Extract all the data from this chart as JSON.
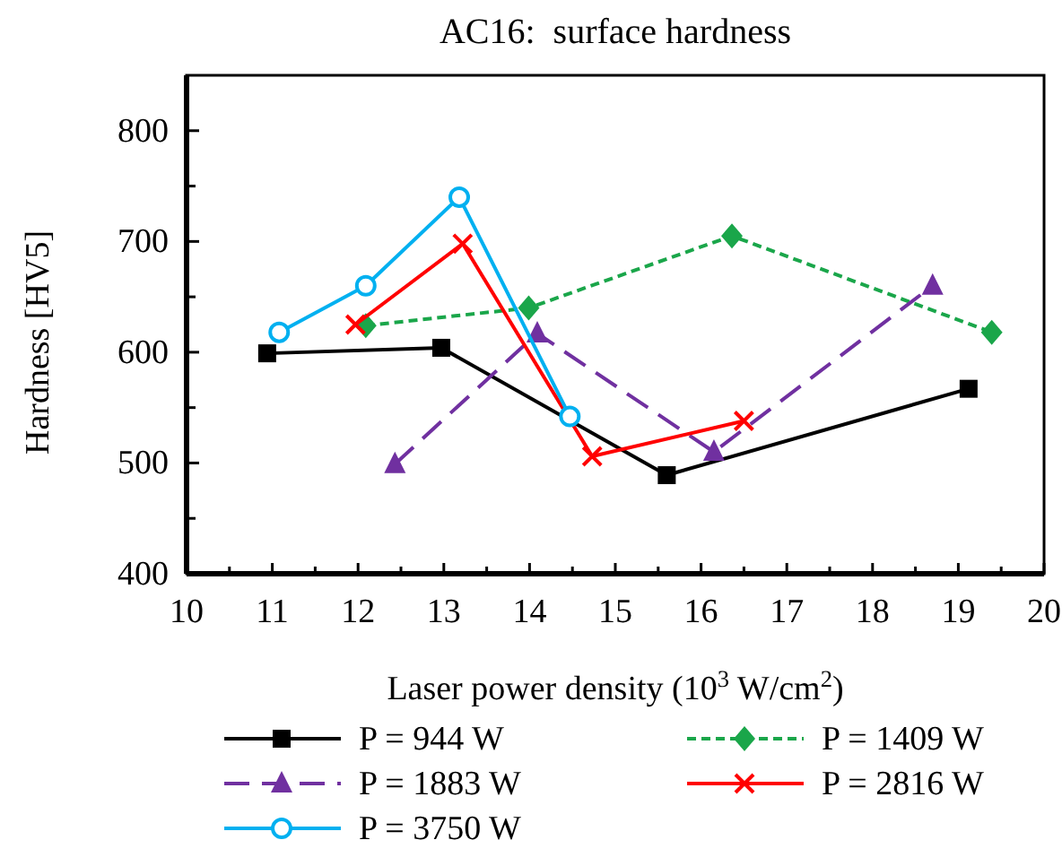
{
  "chart_data": {
    "type": "line",
    "title": "AC16:  surface hardness",
    "xlabel": "Laser power density (10$^{3}$ W/cm$^{2}$)",
    "ylabel": "Hardness [HV5]",
    "xlim": [
      10,
      20
    ],
    "xticks": [
      10,
      11,
      12,
      13,
      14,
      15,
      16,
      17,
      18,
      19,
      20
    ],
    "ylim": [
      400,
      850
    ],
    "yticks": [
      400,
      {
        "value": 450,
        "label": null
      },
      500,
      {
        "value": 550,
        "label": null
      },
      600,
      {
        "value": 650,
        "label": null
      },
      700,
      {
        "value": 750,
        "label": null
      },
      800
    ],
    "grid": false,
    "legend": "bottom",
    "series": [
      {
        "name": "P = 944 W",
        "color": "#000000",
        "marker": "square",
        "line_style": "solid",
        "x": [
          10.94,
          12.97,
          15.6,
          19.12
        ],
        "values": [
          599,
          604,
          489,
          567
        ]
      },
      {
        "name": "P = 1409 W",
        "color": "#1aa64a",
        "marker": "diamond",
        "line_style": "dotted",
        "x": [
          12.09,
          13.99,
          16.36,
          19.39
        ],
        "values": [
          624,
          640,
          705,
          618
        ]
      },
      {
        "name": "P = 1883 W",
        "color": "#7030a0",
        "marker": "triangle",
        "line_style": "dashed",
        "x": [
          12.43,
          14.09,
          16.15,
          18.7
        ],
        "values": [
          499,
          617,
          510,
          660
        ]
      },
      {
        "name": "P = 2816 W",
        "color": "#ff0000",
        "marker": "cross",
        "line_style": "solid",
        "x": [
          11.97,
          13.22,
          14.73,
          16.5
        ],
        "values": [
          625,
          698,
          506,
          538
        ]
      },
      {
        "name": "P = 3750 W",
        "color": "#00b0f0",
        "marker": "circle",
        "line_style": "solid",
        "x": [
          11.08,
          12.09,
          13.18,
          14.47
        ],
        "values": [
          618,
          660,
          740,
          542
        ]
      }
    ]
  }
}
